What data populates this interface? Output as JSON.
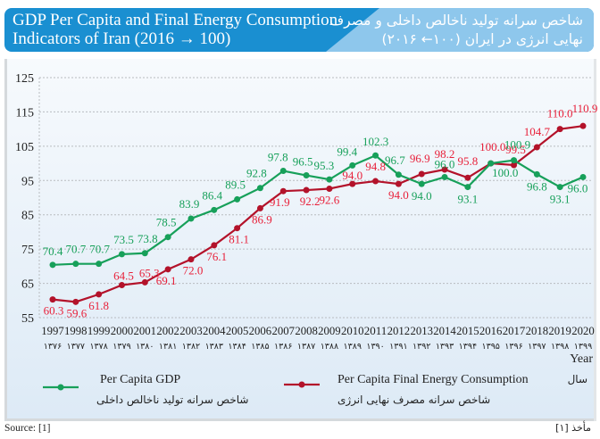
{
  "header": {
    "title_en": "GDP Per Capita and Final Energy Consumption\nIndicators of Iran (2016 → 100)",
    "title_fa": "شاخص سرانه تولید ناخالص داخلی و مصرف\nنهایی انرژی در ایران (۱۰۰← ۲۰۱۶)"
  },
  "colors": {
    "gdp": "#17a05a",
    "energy": "#b3122a",
    "energy_label": "#e8203a",
    "grid": "#b8bcc0",
    "header_en_bg": "#1a8fd1",
    "header_fa_bg": "#8ec7ec"
  },
  "legend": {
    "gdp_en": "Per Capita GDP",
    "gdp_fa": "شاخص سرانه تولید ناخالص داخلی",
    "energy_en": "Per Capita Final Energy Consumption",
    "energy_fa": "شاخص سرانه مصرف نهایی انرژی"
  },
  "axis": {
    "xlabel_en": "Year",
    "xlabel_fa": "سال"
  },
  "source": {
    "en": "Source: [1]",
    "fa": "مأخذ [۱]"
  },
  "chart_data": {
    "type": "line",
    "title": "GDP Per Capita and Final Energy Consumption Indicators of Iran (2016 → 100)",
    "xlabel": "Year",
    "ylabel": "",
    "ylim": [
      55,
      125
    ],
    "yticks": [
      55,
      65,
      75,
      85,
      95,
      105,
      115,
      125
    ],
    "grid": true,
    "legend_position": "bottom",
    "categories": [
      "1997",
      "1998",
      "1999",
      "2000",
      "2001",
      "2002",
      "2003",
      "2004",
      "2005",
      "2006",
      "2007",
      "2008",
      "2009",
      "2010",
      "2011",
      "2012",
      "2013",
      "2014",
      "2015",
      "2016",
      "2017",
      "2018",
      "2019",
      "2020"
    ],
    "categories_fa": [
      "۱۳۷۶",
      "۱۳۷۷",
      "۱۳۷۸",
      "۱۳۷۹",
      "۱۳۸۰",
      "۱۳۸۱",
      "۱۳۸۲",
      "۱۳۸۳",
      "۱۳۸۴",
      "۱۳۸۵",
      "۱۳۸۶",
      "۱۳۸۷",
      "۱۳۸۸",
      "۱۳۸۹",
      "۱۳۹۰",
      "۱۳۹۱",
      "۱۳۹۲",
      "۱۳۹۳",
      "۱۳۹۴",
      "۱۳۹۵",
      "۱۳۹۶",
      "۱۳۹۷",
      "۱۳۹۸",
      "۱۳۹۹"
    ],
    "series": [
      {
        "name": "Per Capita GDP",
        "values": [
          70.4,
          70.7,
          70.7,
          73.5,
          73.8,
          78.5,
          83.9,
          86.4,
          89.5,
          92.8,
          97.8,
          96.5,
          95.3,
          99.4,
          102.3,
          96.7,
          94.0,
          96.0,
          93.1,
          100.0,
          100.9,
          96.8,
          93.1,
          96.0
        ],
        "labels": [
          "70.4",
          "70.7",
          "70.7",
          "73.5",
          "73.8",
          "78.5",
          "83.9",
          "86.4",
          "89.5",
          "92.8",
          "97.8",
          "96.5",
          "95.3",
          "99.4",
          "102.3",
          "96.7",
          "94.0",
          "96.0",
          "93.1",
          "100.0",
          "100.9",
          "96.8",
          "93.1",
          "96.0"
        ]
      },
      {
        "name": "Per Capita Final Energy Consumption",
        "values": [
          60.3,
          59.6,
          61.8,
          64.5,
          65.3,
          69.1,
          72.0,
          76.1,
          81.1,
          86.9,
          91.9,
          92.2,
          92.6,
          94.0,
          94.8,
          94.0,
          96.9,
          98.2,
          95.8,
          100.0,
          99.5,
          104.7,
          110.0,
          110.9
        ],
        "labels": [
          "60.3",
          "59.6",
          "61.8",
          "64.5",
          "65.3",
          "69.1",
          "72.0",
          "76.1",
          "81.1",
          "86.9",
          "91.9",
          "92.2",
          "92.6",
          "94.0",
          "94.8",
          "94.0",
          "96.9",
          "98.2",
          "95.8",
          "100.0",
          "99.5",
          "104.7",
          "110.0",
          "110.9"
        ]
      }
    ]
  }
}
